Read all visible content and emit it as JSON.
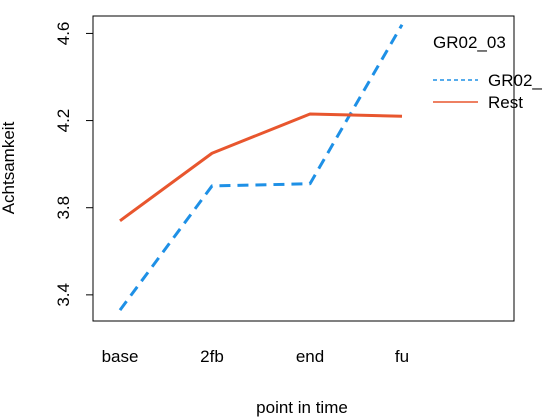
{
  "chart_data": {
    "type": "line",
    "categories": [
      "base",
      "2fb",
      "end",
      "fu"
    ],
    "xlabel": "point in time",
    "ylabel": "Achtsamkeit",
    "ylim": [
      3.28,
      4.68
    ],
    "yticks": [
      3.4,
      3.8,
      4.2,
      4.6
    ],
    "ytick_labels": [
      "3.4",
      "3.8",
      "4.2",
      "4.6"
    ],
    "grid": false,
    "legend": {
      "title": "GR02_03",
      "placement": "top-right"
    },
    "series": [
      {
        "name": "GR02_",
        "values": [
          3.33,
          3.9,
          3.91,
          4.64
        ],
        "color": "#1e90e6",
        "line_style": "dashed"
      },
      {
        "name": "Rest",
        "values": [
          3.74,
          4.05,
          4.23,
          4.22
        ],
        "color": "#e8562e",
        "line_style": "solid"
      }
    ]
  }
}
